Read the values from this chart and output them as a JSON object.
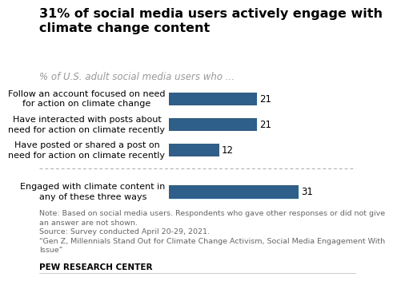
{
  "title": "31% of social media users actively engage with\nclimate change content",
  "subtitle": "% of U.S. adult social media users who ...",
  "categories": [
    "Follow an account focused on need\nfor action on climate change",
    "Have interacted with posts about\nneed for action on climate recently",
    "Have posted or shared a post on\nneed for action on climate recently"
  ],
  "values": [
    21,
    21,
    12
  ],
  "summary_label": "Engaged with climate content in\nany of these three ways",
  "summary_value": 31,
  "bar_color": "#2E5F8A",
  "note_line1": "Note: Based on social media users. Respondents who gave other responses or did not give",
  "note_line2": "an answer are not shown.",
  "note_line3": "Source: Survey conducted April 20-29, 2021.",
  "note_line4": "“Gen Z, Millennials Stand Out for Climate Change Activism, Social Media Engagement With",
  "note_line5": "Issue”",
  "footer": "PEW RESEARCH CENTER",
  "xlim": [
    0,
    40
  ],
  "background_color": "#ffffff",
  "title_fontsize": 11.5,
  "subtitle_fontsize": 8.5,
  "label_fontsize": 8,
  "value_fontsize": 8.5,
  "note_fontsize": 6.8,
  "footer_fontsize": 7.5
}
